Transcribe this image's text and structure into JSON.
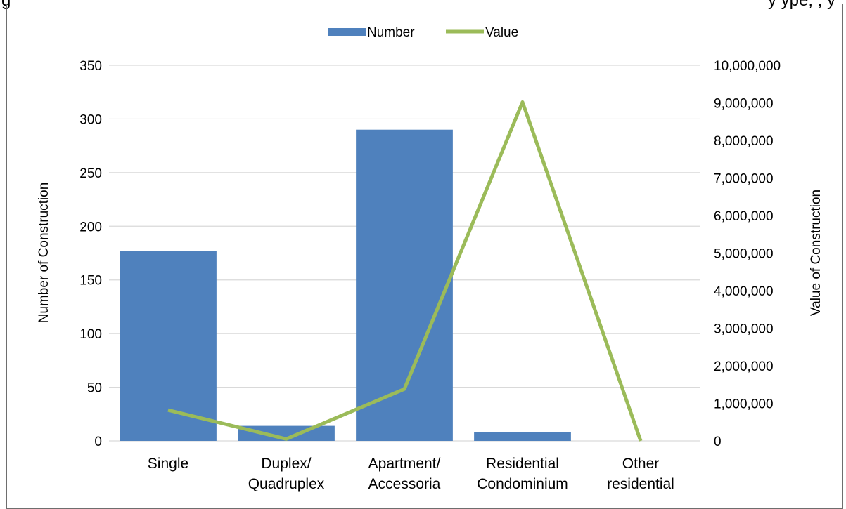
{
  "header_fragments": {
    "left": "g",
    "right": "y ype, , y"
  },
  "chart_data": {
    "type": "bar",
    "title": "",
    "categories": [
      [
        "Single"
      ],
      [
        "Duplex/",
        "Quadruplex"
      ],
      [
        "Apartment/",
        "Accessoria"
      ],
      [
        "Residential",
        "Condominium"
      ],
      [
        "Other",
        "residential"
      ]
    ],
    "series": [
      {
        "name": "Number",
        "type": "bar",
        "axis": "left",
        "values": [
          177,
          14,
          290,
          8,
          0
        ]
      },
      {
        "name": "Value",
        "type": "line",
        "axis": "right",
        "values": [
          820000,
          50000,
          1380000,
          9020000,
          0
        ]
      }
    ],
    "ylabel_left": "Number of Construction",
    "ylabel_right": "Value of Construction",
    "ylim_left": [
      0,
      350
    ],
    "ylim_right": [
      0,
      10000000
    ],
    "yticks_left": [
      "0",
      "50",
      "100",
      "150",
      "200",
      "250",
      "300",
      "350"
    ],
    "yticks_right": [
      "0",
      "1,000,000",
      "2,000,000",
      "3,000,000",
      "4,000,000",
      "5,000,000",
      "6,000,000",
      "7,000,000",
      "8,000,000",
      "9,000,000",
      "10,000,000"
    ],
    "grid": true,
    "legend_position": "top-center",
    "colors": {
      "bar": "#4f81bd",
      "line": "#9bbb59",
      "grid": "#d9d9d9"
    }
  }
}
